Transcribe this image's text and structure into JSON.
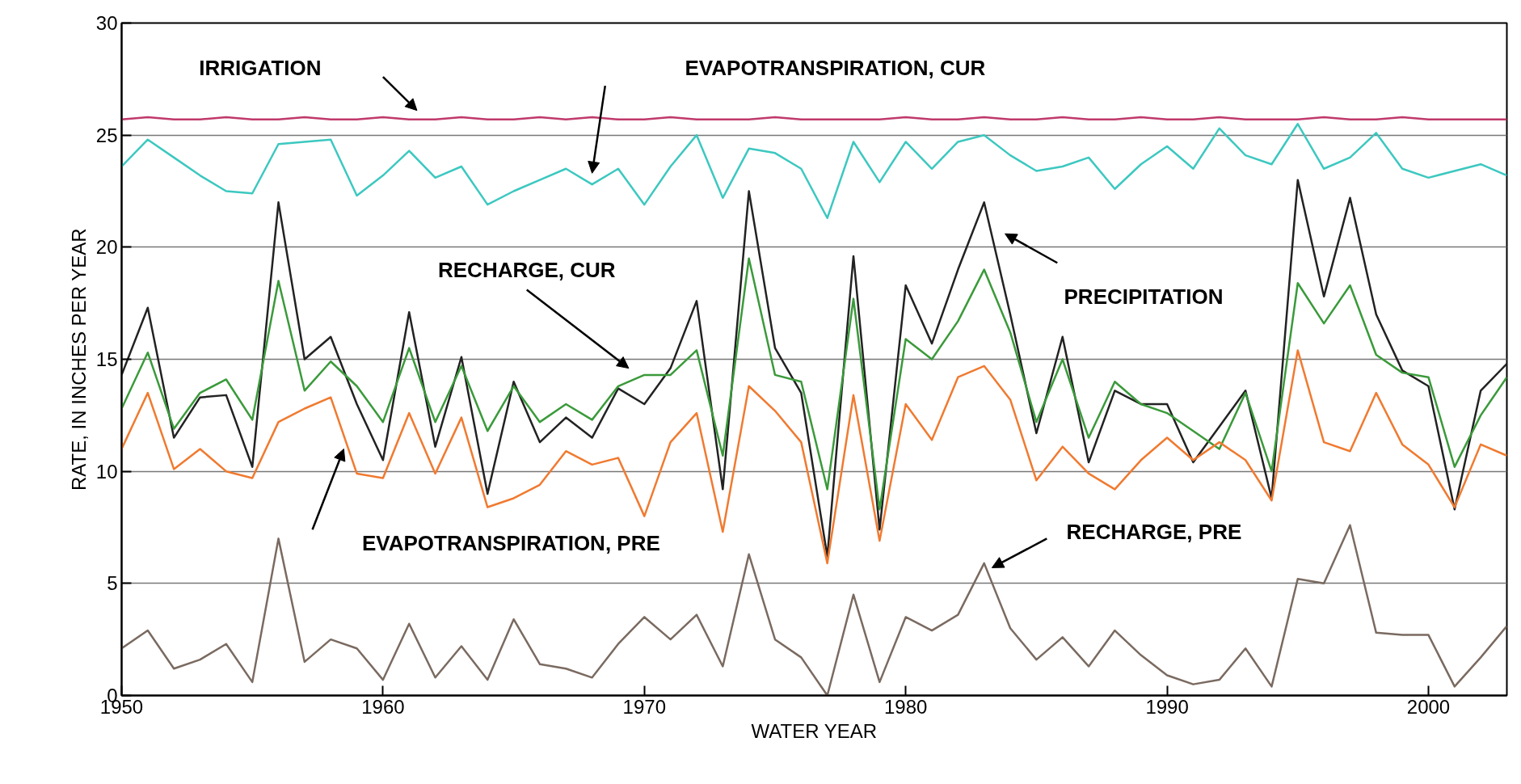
{
  "chart_data": {
    "type": "line",
    "xlabel": "WATER YEAR",
    "ylabel": "RATE, IN INCHES PER YEAR",
    "x": [
      1950,
      1951,
      1952,
      1953,
      1954,
      1955,
      1956,
      1957,
      1958,
      1959,
      1960,
      1961,
      1962,
      1963,
      1964,
      1965,
      1966,
      1967,
      1968,
      1969,
      1970,
      1971,
      1972,
      1973,
      1974,
      1975,
      1976,
      1977,
      1978,
      1979,
      1980,
      1981,
      1982,
      1983,
      1984,
      1985,
      1986,
      1987,
      1988,
      1989,
      1990,
      1991,
      1992,
      1993,
      1994,
      1995,
      1996,
      1997,
      1998,
      1999,
      2000,
      2001,
      2002,
      2003
    ],
    "series": [
      {
        "color": "#c0396b",
        "values": [
          25.7,
          25.8,
          25.7,
          25.7,
          25.8,
          25.7,
          25.7,
          25.8,
          25.7,
          25.7,
          25.8,
          25.7,
          25.7,
          25.8,
          25.7,
          25.7,
          25.8,
          25.7,
          25.8,
          25.7,
          25.7,
          25.8,
          25.7,
          25.7,
          25.7,
          25.8,
          25.7,
          25.7,
          25.7,
          25.7,
          25.8,
          25.7,
          25.7,
          25.8,
          25.7,
          25.7,
          25.8,
          25.7,
          25.7,
          25.8,
          25.7,
          25.7,
          25.8,
          25.7,
          25.7,
          25.7,
          25.8,
          25.7,
          25.7,
          25.8,
          25.7,
          25.7,
          25.7,
          25.7
        ]
      },
      {
        "color": "#3cc8c0",
        "values": [
          23.6,
          24.8,
          24.0,
          23.2,
          22.5,
          22.4,
          24.6,
          24.7,
          24.8,
          22.3,
          23.2,
          24.3,
          23.1,
          23.6,
          21.9,
          22.5,
          23.0,
          23.5,
          22.8,
          23.5,
          21.9,
          23.6,
          25.0,
          22.2,
          24.4,
          24.2,
          23.5,
          21.3,
          24.7,
          22.9,
          24.7,
          23.5,
          24.7,
          25.0,
          24.1,
          23.4,
          23.6,
          24.0,
          22.6,
          23.7,
          24.5,
          23.5,
          25.3,
          24.1,
          23.7,
          25.5,
          23.5,
          24.0,
          25.1,
          23.5,
          23.1,
          23.4,
          23.7,
          23.2
        ]
      },
      {
        "color": "#222222",
        "values": [
          14.3,
          17.3,
          11.5,
          13.3,
          13.4,
          10.2,
          22.0,
          15.0,
          16.0,
          13.0,
          10.5,
          17.1,
          11.1,
          15.1,
          9.0,
          14.0,
          11.3,
          12.4,
          11.5,
          13.7,
          13.0,
          14.6,
          17.6,
          9.2,
          22.5,
          15.5,
          13.5,
          6.2,
          19.6,
          7.4,
          18.3,
          15.7,
          19.0,
          22.0,
          17.0,
          11.7,
          16.0,
          10.4,
          13.6,
          13.0,
          13.0,
          10.4,
          12.0,
          13.6,
          8.8,
          23.0,
          17.8,
          22.2,
          17.0,
          14.5,
          13.8,
          8.3,
          13.6,
          14.8
        ]
      },
      {
        "color": "#3a9a3a",
        "values": [
          12.8,
          15.3,
          11.9,
          13.5,
          14.1,
          12.3,
          18.5,
          13.6,
          14.9,
          13.8,
          12.2,
          15.5,
          12.2,
          14.7,
          11.8,
          13.8,
          12.2,
          13.0,
          12.3,
          13.8,
          14.3,
          14.3,
          15.4,
          10.7,
          19.5,
          14.3,
          14.0,
          9.2,
          17.7,
          8.3,
          15.9,
          15.0,
          16.7,
          19.0,
          16.2,
          12.2,
          15.0,
          11.5,
          14.0,
          13.0,
          12.6,
          11.8,
          11.0,
          13.5,
          10.0,
          18.4,
          16.6,
          18.3,
          15.2,
          14.4,
          14.2,
          10.2,
          12.5,
          14.2
        ]
      },
      {
        "color": "#f07a30",
        "values": [
          11.0,
          13.5,
          10.1,
          11.0,
          10.0,
          9.7,
          12.2,
          12.8,
          13.3,
          9.9,
          9.7,
          12.6,
          9.9,
          12.4,
          8.4,
          8.8,
          9.4,
          10.9,
          10.3,
          10.6,
          8.0,
          11.3,
          12.6,
          7.3,
          13.8,
          12.7,
          11.3,
          5.9,
          13.4,
          6.9,
          13.0,
          11.4,
          14.2,
          14.7,
          13.2,
          9.6,
          11.1,
          9.9,
          9.2,
          10.5,
          11.5,
          10.5,
          11.3,
          10.5,
          8.7,
          15.4,
          11.3,
          10.9,
          13.5,
          11.2,
          10.3,
          8.4,
          11.2,
          10.7
        ]
      },
      {
        "color": "#7a6a60",
        "values": [
          2.1,
          2.9,
          1.2,
          1.6,
          2.3,
          0.6,
          7.0,
          1.5,
          2.5,
          2.1,
          0.7,
          3.2,
          0.8,
          2.2,
          0.7,
          3.4,
          1.4,
          1.2,
          0.8,
          2.3,
          3.5,
          2.5,
          3.6,
          1.3,
          6.3,
          2.5,
          1.7,
          0.0,
          4.5,
          0.6,
          3.5,
          2.9,
          3.6,
          5.9,
          3.0,
          1.6,
          2.6,
          1.3,
          2.9,
          1.8,
          0.9,
          0.5,
          0.7,
          2.1,
          0.4,
          5.2,
          5.0,
          7.6,
          2.8,
          2.7,
          2.7,
          0.4,
          1.7,
          3.1
        ]
      }
    ],
    "annotations": [
      "IRRIGATION",
      "EVAPOTRANSPIRATION, CUR",
      "RECHARGE, CUR",
      "PRECIPITATION",
      "EVAPOTRANSPIRATION, PRE",
      "RECHARGE, PRE"
    ],
    "xlim": [
      1950,
      2003
    ],
    "ylim": [
      0,
      30
    ],
    "xticks": [
      1950,
      1960,
      1970,
      1980,
      1990,
      2000
    ],
    "yticks": [
      0,
      5,
      10,
      15,
      20,
      25,
      30
    ],
    "grid": "y",
    "marker": "none",
    "line_style": "solid"
  }
}
